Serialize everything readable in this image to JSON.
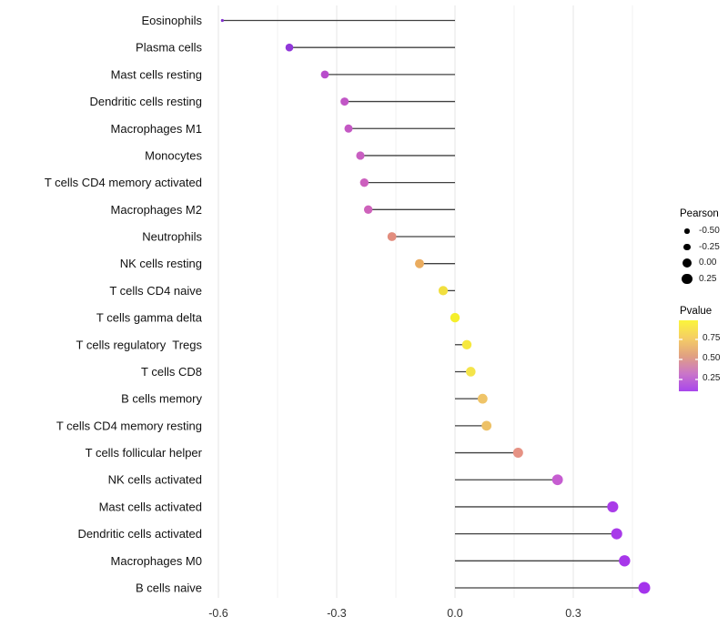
{
  "chart_data": {
    "type": "lollipop",
    "title": "",
    "xlabel": "",
    "ylabel": "",
    "x_ticks": [
      -0.6,
      -0.3,
      0.0,
      0.3
    ],
    "x_tick_labels": [
      "-0.6",
      "-0.3",
      "0.0",
      "0.3"
    ],
    "x_minor_ticks": [
      -0.45,
      -0.15,
      0.15,
      0.45
    ],
    "xlim": [
      -0.63,
      0.5
    ],
    "baseline_x": 0.0,
    "grid": true,
    "legend_position": "right",
    "size_encoding": "Pearson",
    "color_encoding": "Pvalue",
    "rows": [
      {
        "label": "Eosinophils",
        "pearson": -0.59,
        "dot_color": "#8433CF",
        "dot_radius": 1.6
      },
      {
        "label": "Plasma cells",
        "pearson": -0.42,
        "dot_color": "#9138D9",
        "dot_radius": 4.3
      },
      {
        "label": "Mast cells resting",
        "pearson": -0.33,
        "dot_color": "#B84CCB",
        "dot_radius": 4.4
      },
      {
        "label": "Dendritic cells resting",
        "pearson": -0.28,
        "dot_color": "#C156C6",
        "dot_radius": 4.5
      },
      {
        "label": "Macrophages M1",
        "pearson": -0.27,
        "dot_color": "#C458C4",
        "dot_radius": 4.5
      },
      {
        "label": "Monocytes",
        "pearson": -0.24,
        "dot_color": "#C95FC2",
        "dot_radius": 4.6
      },
      {
        "label": "T cells CD4 memory activated",
        "pearson": -0.23,
        "dot_color": "#CC60BE",
        "dot_radius": 4.7
      },
      {
        "label": "Macrophages M2",
        "pearson": -0.22,
        "dot_color": "#CE62BB",
        "dot_radius": 4.7
      },
      {
        "label": "Neutrophils",
        "pearson": -0.16,
        "dot_color": "#E28D7E",
        "dot_radius": 4.9
      },
      {
        "label": "NK cells resting",
        "pearson": -0.09,
        "dot_color": "#EAAC5F",
        "dot_radius": 5.0
      },
      {
        "label": "T cells CD4 naive",
        "pearson": -0.03,
        "dot_color": "#F1DF3F",
        "dot_radius": 5.1
      },
      {
        "label": "T cells gamma delta",
        "pearson": 0.0,
        "dot_color": "#F5EF2B",
        "dot_radius": 5.2
      },
      {
        "label": "T cells regulatory  Tregs",
        "pearson": 0.03,
        "dot_color": "#F6E83E",
        "dot_radius": 5.2
      },
      {
        "label": "T cells CD8",
        "pearson": 0.04,
        "dot_color": "#F4E44A",
        "dot_radius": 5.3
      },
      {
        "label": "B cells memory",
        "pearson": 0.07,
        "dot_color": "#EFC468",
        "dot_radius": 5.4
      },
      {
        "label": "T cells CD4 memory resting",
        "pearson": 0.08,
        "dot_color": "#EDC167",
        "dot_radius": 5.4
      },
      {
        "label": "T cells follicular helper",
        "pearson": 0.16,
        "dot_color": "#E69284",
        "dot_radius": 5.5
      },
      {
        "label": "NK cells activated",
        "pearson": 0.26,
        "dot_color": "#C65DD1",
        "dot_radius": 5.9
      },
      {
        "label": "Mast cells activated",
        "pearson": 0.4,
        "dot_color": "#A93CE8",
        "dot_radius": 6.1
      },
      {
        "label": "Dendritic cells activated",
        "pearson": 0.41,
        "dot_color": "#A83AE9",
        "dot_radius": 6.1
      },
      {
        "label": "Macrophages M0",
        "pearson": 0.43,
        "dot_color": "#A737EA",
        "dot_radius": 6.2
      },
      {
        "label": "B cells naive",
        "pearson": 0.48,
        "dot_color": "#A434EC",
        "dot_radius": 6.5
      }
    ]
  },
  "legend": {
    "size": {
      "title": "Pearson",
      "dot_color": "#000000",
      "entries": [
        {
          "label": "-0.50",
          "diameter": 5.5
        },
        {
          "label": "-0.25",
          "diameter": 7.5
        },
        {
          "label": "0.00",
          "diameter": 10
        },
        {
          "label": "0.25",
          "diameter": 11.5
        }
      ]
    },
    "color": {
      "title": "Pvalue",
      "ticks": [
        "0.75",
        "0.50",
        "0.25"
      ],
      "gradient_top_to_bottom": [
        "#FBF53C",
        "#F5CE64",
        "#E1A181",
        "#CA76C8",
        "#A846EC"
      ]
    }
  },
  "colors": {
    "background": "#ffffff",
    "grid_major": "#e4e4e4",
    "grid_minor": "#f1f1f1",
    "stem": "#404040",
    "axis_text": "#333333",
    "label_text": "#111111"
  }
}
